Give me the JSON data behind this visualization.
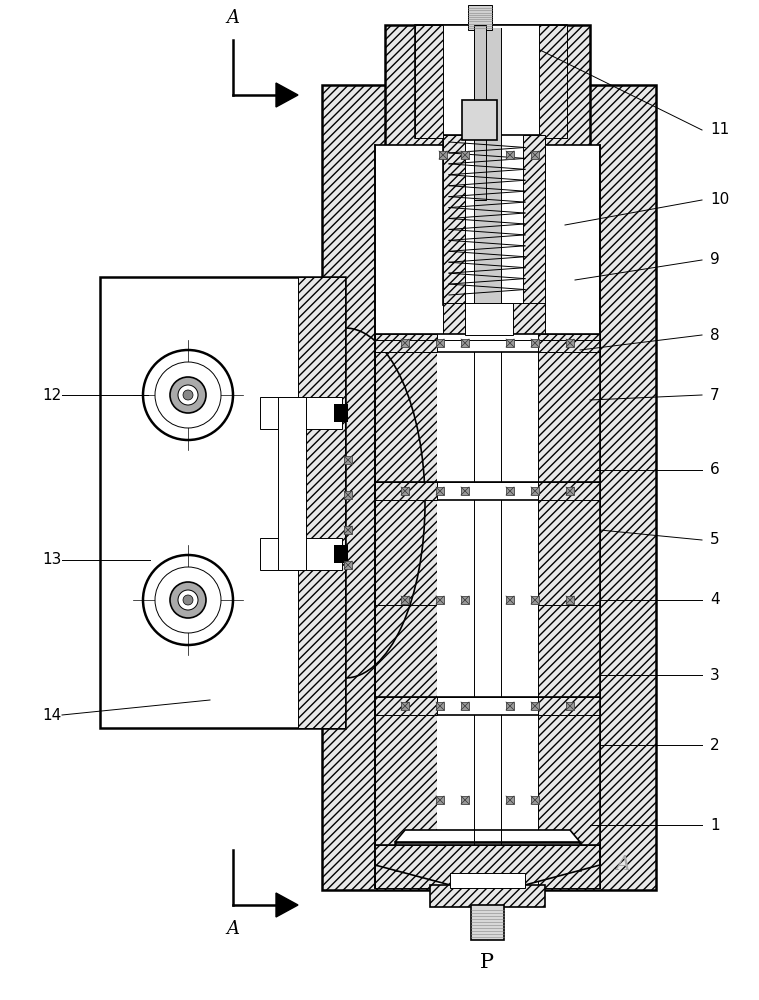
{
  "bg_color": "#ffffff",
  "line_color": "#000000",
  "part_numbers_right": [
    "1",
    "2",
    "3",
    "4",
    "5",
    "6",
    "7",
    "8",
    "9",
    "10",
    "11"
  ],
  "part_numbers_left": [
    "12",
    "13",
    "14"
  ],
  "labels_A_right": "A",
  "label_P": "P"
}
